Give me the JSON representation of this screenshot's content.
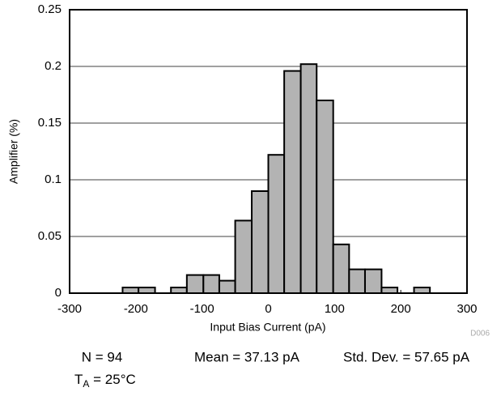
{
  "chart_data": {
    "type": "histogram",
    "x_label": "Input Bias Current (pA)",
    "y_label": "Amplifier (%)",
    "bins": [
      -220,
      -196,
      -171,
      -147,
      -123,
      -98,
      -74,
      -50,
      -25,
      0,
      24,
      49,
      73,
      98,
      122,
      146,
      171,
      195,
      220,
      244
    ],
    "values": [
      0.005,
      0.005,
      0,
      0.005,
      0.016,
      0.016,
      0.011,
      0.064,
      0.09,
      0.122,
      0.196,
      0.202,
      0.17,
      0.043,
      0.021,
      0.021,
      0.005,
      0,
      0.005
    ],
    "color": "#b3b3b3",
    "xlim": [
      -300,
      300
    ],
    "xticks": [
      -300,
      -200,
      -100,
      0,
      100,
      200,
      300
    ],
    "ylim": [
      0,
      0.25
    ],
    "yticks": [
      0,
      0.05,
      0.1,
      0.15,
      0.2,
      0.25
    ],
    "grid": true,
    "figure_id": "D006",
    "annotations": [
      "N = 94",
      "Mean = 37.13 pA",
      "Std. Dev. = 57.65 pA"
    ],
    "temperature": {
      "symbol": "T",
      "subscript": "A",
      "text": " = 25°C"
    }
  }
}
